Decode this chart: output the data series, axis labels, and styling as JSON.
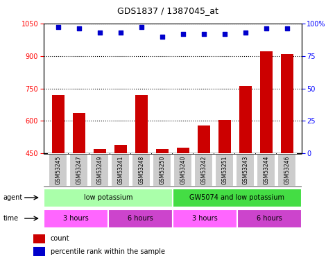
{
  "title": "GDS1837 / 1387045_at",
  "samples": [
    "GSM53245",
    "GSM53247",
    "GSM53249",
    "GSM53241",
    "GSM53248",
    "GSM53250",
    "GSM53240",
    "GSM53242",
    "GSM53251",
    "GSM53243",
    "GSM53244",
    "GSM53246"
  ],
  "bar_values": [
    720,
    635,
    470,
    490,
    720,
    470,
    475,
    580,
    605,
    760,
    920,
    910
  ],
  "percentile_values": [
    97,
    96,
    93,
    93,
    97,
    90,
    92,
    92,
    92,
    93,
    96,
    96
  ],
  "y_min": 450,
  "y_max": 1050,
  "y_ticks": [
    450,
    600,
    750,
    900,
    1050
  ],
  "y_right_ticks": [
    0,
    25,
    50,
    75,
    100
  ],
  "bar_color": "#CC0000",
  "dot_color": "#0000CC",
  "agent_row": [
    {
      "label": "low potassium",
      "start": 0,
      "end": 6,
      "color": "#AAFFAA"
    },
    {
      "label": "GW5074 and low potassium",
      "start": 6,
      "end": 12,
      "color": "#44DD44"
    }
  ],
  "time_row": [
    {
      "label": "3 hours",
      "start": 0,
      "end": 3,
      "color": "#FF66FF"
    },
    {
      "label": "6 hours",
      "start": 3,
      "end": 6,
      "color": "#CC44CC"
    },
    {
      "label": "3 hours",
      "start": 6,
      "end": 9,
      "color": "#FF66FF"
    },
    {
      "label": "6 hours",
      "start": 9,
      "end": 12,
      "color": "#CC44CC"
    }
  ],
  "sample_bg_color": "#CCCCCC",
  "legend_count_color": "#CC0000",
  "legend_pct_color": "#0000CC"
}
